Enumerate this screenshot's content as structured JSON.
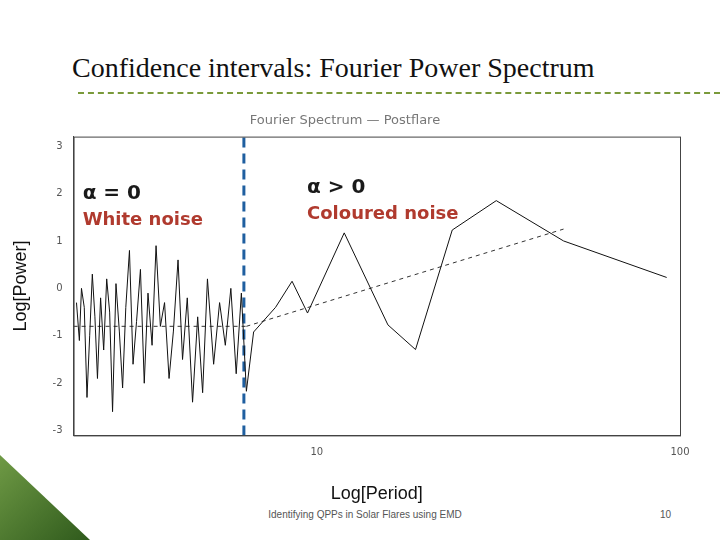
{
  "slide": {
    "title": "Confidence intervals: Fourier Power Spectrum",
    "footer": "Identifying QPPs in Solar Flares using EMD",
    "page_number": 10
  },
  "chart_data": {
    "type": "line",
    "title": "Fourier Spectrum — Postflare",
    "x_label": "Log[Period]",
    "y_label": "Log[Power]",
    "log": "x",
    "grid": false,
    "xlim": [
      2.14,
      100
    ],
    "xticks": [
      10,
      100
    ],
    "ylim": [
      -3.1,
      3.2
    ],
    "yticks": [
      -3,
      -2,
      -1,
      0,
      1,
      2,
      3
    ],
    "annotations": [
      {
        "text": "α = 0",
        "color": "#1a1a1a"
      },
      {
        "text": "White noise",
        "color": "#b03a2e"
      },
      {
        "text": "α > 0",
        "color": "#1a1a1a"
      },
      {
        "text": "Coloured noise",
        "color": "#b03a2e"
      }
    ],
    "series": [
      {
        "color": "#111111",
        "line_style": "solid",
        "x": [
          2.18,
          2.22,
          2.25,
          2.29,
          2.33,
          2.37,
          2.41,
          2.45,
          2.49,
          2.54,
          2.59,
          2.64,
          2.69,
          2.74,
          2.8,
          2.86,
          2.92,
          2.98,
          3.05,
          3.12,
          3.19,
          3.27,
          3.35,
          3.43,
          3.52,
          3.61,
          3.71,
          3.81,
          3.92,
          4.03,
          4.15,
          4.27,
          4.4,
          4.55,
          4.7,
          4.85,
          5.0,
          5.2,
          5.4,
          5.6,
          5.8,
          6.0,
          6.2,
          6.4,
          6.7,
          7.7,
          8.55,
          9.43,
          11.9,
          15.7,
          18.7,
          23.6,
          31.2,
          47.8,
          91.9
        ],
        "values": [
          -0.3,
          -1.1,
          0.0,
          -0.4,
          -2.3,
          -1.0,
          0.3,
          -0.6,
          -1.9,
          -0.2,
          -1.3,
          0.2,
          -0.5,
          -2.6,
          0.1,
          -0.9,
          -2.1,
          -0.4,
          0.8,
          -1.6,
          -0.7,
          0.4,
          -2.0,
          -0.1,
          -1.2,
          0.9,
          -0.8,
          -0.3,
          -1.9,
          -0.9,
          0.6,
          -1.5,
          -0.2,
          -2.4,
          -0.6,
          -2.2,
          0.2,
          -1.6,
          -0.3,
          -1.2,
          0.0,
          -1.8,
          -0.1,
          -2.17,
          -0.92,
          -0.4,
          0.15,
          -0.52,
          1.17,
          -0.77,
          -1.29,
          1.23,
          1.85,
          1.0,
          0.23
        ]
      },
      {
        "color": "#333333",
        "line_style": "dashed",
        "x": [
          2.14,
          6.4
        ],
        "values": [
          -0.8,
          -0.8
        ]
      },
      {
        "color": "#333333",
        "line_style": "dashed",
        "x": [
          6.4,
          47.8
        ],
        "values": [
          -0.8,
          1.25
        ]
      },
      {
        "type": "vline",
        "color": "#1f5fa0",
        "line_style": "dashed",
        "x": [
          6.3,
          6.3
        ],
        "values": [
          -3.1,
          3.2
        ]
      }
    ]
  }
}
